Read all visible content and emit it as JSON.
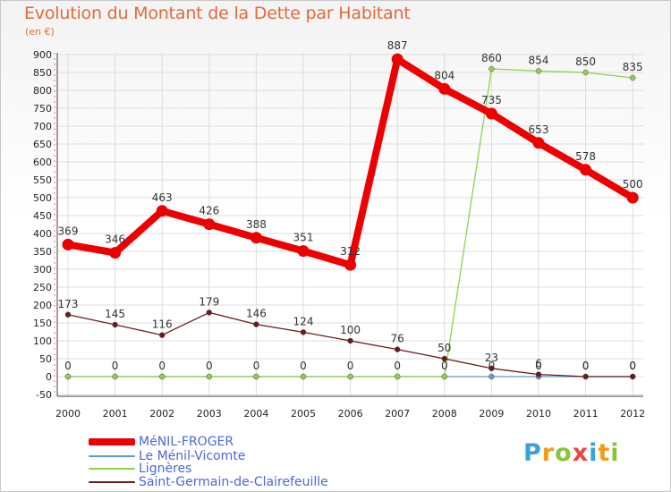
{
  "chart_data": {
    "type": "line",
    "title": "Evolution du Montant de la Dette par Habitant",
    "subtitle": "(en €)",
    "xlabel": "",
    "ylabel": "",
    "x": [
      "2000",
      "2001",
      "2002",
      "2003",
      "2004",
      "2005",
      "2006",
      "2007",
      "2008",
      "2009",
      "2010",
      "2011",
      "2012"
    ],
    "ylim": [
      -50,
      900
    ],
    "yticks": [
      "-50",
      "0",
      "50",
      "100",
      "150",
      "200",
      "250",
      "300",
      "350",
      "400",
      "450",
      "500",
      "550",
      "600",
      "650",
      "700",
      "750",
      "800",
      "850",
      "900"
    ],
    "grid": true,
    "legend_position": "bottom-left",
    "series": [
      {
        "name": "MéNIL-FROGER",
        "color": "#ee0000",
        "values": [
          369,
          346,
          463,
          426,
          388,
          351,
          312,
          887,
          804,
          735,
          653,
          578,
          500
        ],
        "labels": [
          "369",
          "346",
          "463",
          "426",
          "388",
          "351",
          "312",
          "887",
          "804",
          "735",
          "653",
          "578",
          "500"
        ]
      },
      {
        "name": "Le Ménil-Vicomte",
        "color": "#5b9bd5",
        "values": [
          0,
          0,
          0,
          0,
          0,
          0,
          0,
          0,
          0,
          0,
          0,
          0,
          0
        ],
        "labels": [
          "0",
          "0",
          "0",
          "0",
          "0",
          "0",
          "0",
          "0",
          "0",
          "0",
          "0",
          "0",
          "0"
        ]
      },
      {
        "name": "Lignères",
        "color": "#8fd14f",
        "values": [
          0,
          0,
          0,
          0,
          0,
          0,
          0,
          0,
          0,
          860,
          854,
          850,
          835
        ],
        "labels": [
          "",
          "",
          "",
          "",
          "",
          "",
          "",
          "",
          "",
          "860",
          "854",
          "850",
          "835"
        ]
      },
      {
        "name": "Saint-Germain-de-Clairefeuille",
        "color": "#6b1a1a",
        "values": [
          173,
          145,
          116,
          179,
          146,
          124,
          100,
          76,
          50,
          23,
          6,
          0,
          0
        ],
        "labels": [
          "173",
          "145",
          "116",
          "179",
          "146",
          "124",
          "100",
          "76",
          "50",
          "23",
          "6",
          "0",
          "0"
        ]
      }
    ]
  },
  "branding": {
    "logo_letters": [
      "P",
      "r",
      "o",
      "x",
      "i",
      "t",
      "i"
    ],
    "logo_colors": [
      "#3ba1d9",
      "#f29c1a",
      "#8cc43d",
      "#e8473f",
      "#3ba1d9",
      "#f29c1a",
      "#8cc43d"
    ]
  }
}
